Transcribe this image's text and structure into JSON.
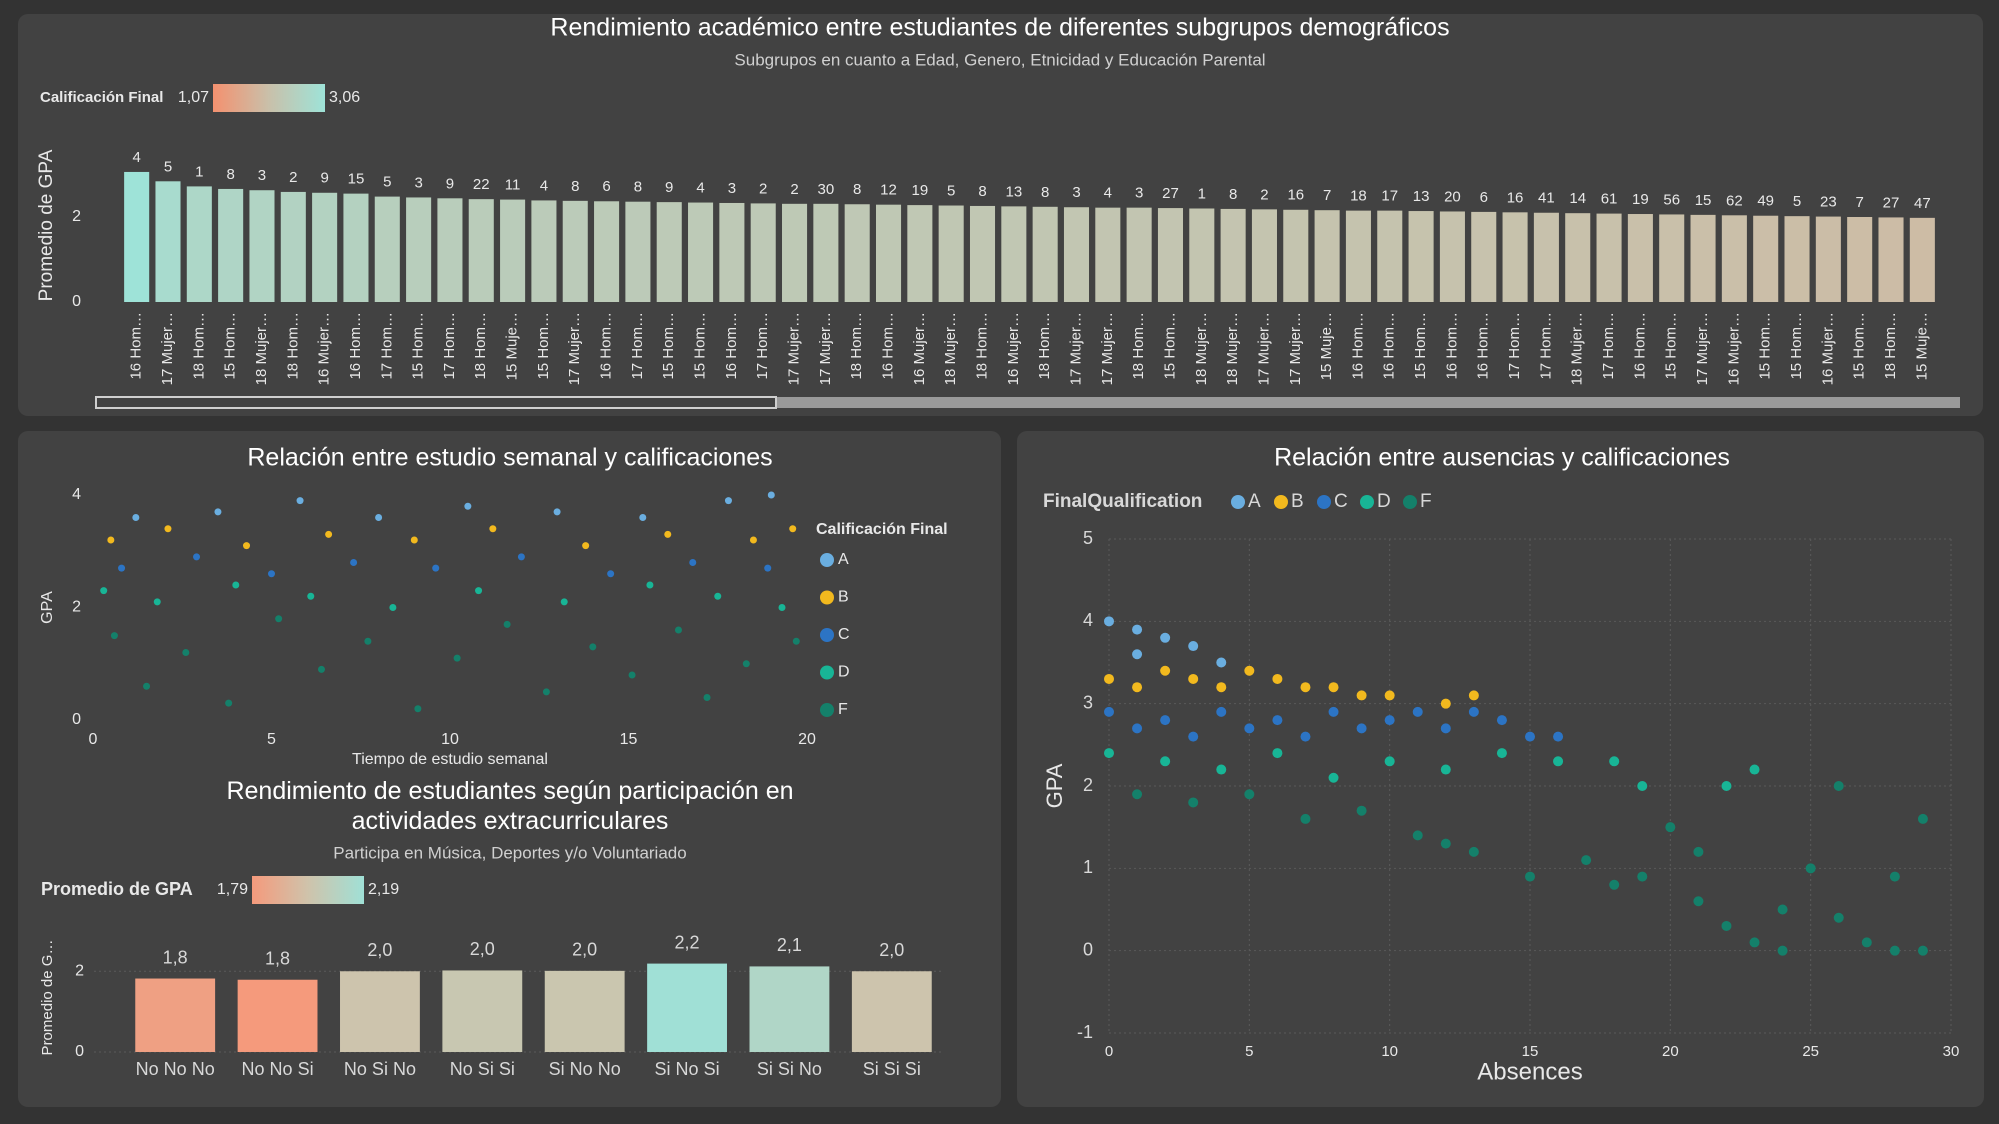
{
  "chart_data": [
    {
      "type": "bar",
      "title": "Rendimiento académico entre estudiantes de diferentes subgrupos demográficos",
      "subtitle": "Subgrupos en cuanto a Edad, Genero, Etnicidad y Educación Parental",
      "ylabel": "Promedio de GPA",
      "legend": {
        "title": "Calificación Final",
        "min": {
          "value": 1.07,
          "label": "1,07"
        },
        "max": {
          "value": 3.06,
          "label": "3,06"
        },
        "colors": [
          "#f4916f",
          "#c9c0aa",
          "#9ee3d8"
        ]
      },
      "categories": [
        "16 Hom…",
        "17 Mujer…",
        "18 Hom…",
        "15 Hom…",
        "18 Mujer…",
        "18 Hom…",
        "16 Mujer…",
        "16 Hom…",
        "17 Hom…",
        "15 Hom…",
        "17 Hom…",
        "18 Hom…",
        "15 Muje…",
        "15 Hom…",
        "17 Mujer…",
        "16 Hom…",
        "17 Hom…",
        "15 Hom…",
        "15 Hom…",
        "16 Hom…",
        "17 Hom…",
        "17 Mujer…",
        "17 Mujer…",
        "18 Hom…",
        "16 Hom…",
        "16 Mujer…",
        "18 Mujer…",
        "18 Hom…",
        "16 Mujer…",
        "18 Hom…",
        "17 Mujer…",
        "17 Mujer…",
        "18 Hom…",
        "15 Hom…",
        "18 Mujer…",
        "18 Mujer…",
        "17 Mujer…",
        "17 Mujer…",
        "15 Muje…",
        "16 Hom…",
        "16 Hom…",
        "15 Hom…",
        "16 Hom…",
        "16 Hom…",
        "17 Hom…",
        "17 Hom…",
        "18 Mujer…",
        "17 Hom…",
        "16 Hom…",
        "15 Hom…",
        "17 Mujer…",
        "16 Mujer…",
        "15 Hom…",
        "15 Hom…",
        "16 Mujer…",
        "15 Hom…",
        "18 Hom…",
        "15 Muje…"
      ],
      "values": [
        3.06,
        2.84,
        2.72,
        2.66,
        2.63,
        2.59,
        2.57,
        2.55,
        2.48,
        2.46,
        2.44,
        2.42,
        2.41,
        2.39,
        2.38,
        2.37,
        2.36,
        2.35,
        2.34,
        2.33,
        2.32,
        2.31,
        2.31,
        2.3,
        2.29,
        2.28,
        2.27,
        2.26,
        2.25,
        2.24,
        2.23,
        2.22,
        2.22,
        2.21,
        2.2,
        2.19,
        2.18,
        2.17,
        2.16,
        2.15,
        2.15,
        2.14,
        2.13,
        2.12,
        2.11,
        2.1,
        2.09,
        2.08,
        2.07,
        2.06,
        2.05,
        2.04,
        2.03,
        2.02,
        2.01,
        2.0,
        1.99,
        1.98
      ],
      "data_labels": [
        4,
        5,
        1,
        8,
        3,
        2,
        9,
        15,
        5,
        3,
        9,
        22,
        11,
        4,
        8,
        6,
        8,
        9,
        4,
        3,
        2,
        2,
        30,
        8,
        12,
        19,
        5,
        8,
        13,
        8,
        3,
        4,
        3,
        27,
        1,
        8,
        2,
        16,
        7,
        18,
        17,
        13,
        20,
        6,
        16,
        41,
        14,
        61,
        19,
        56,
        15,
        62,
        49,
        5,
        23,
        7,
        27,
        47
      ],
      "ylim": [
        0,
        3.6
      ],
      "yticks": [
        0,
        2
      ],
      "grid": false
    },
    {
      "type": "scatter",
      "title": "Relación entre estudio semanal y calificaciones",
      "xlabel": "Tiempo de estudio semanal",
      "ylabel": "GPA",
      "legend_title": "Calificación Final",
      "xlim": [
        0,
        20
      ],
      "xticks": [
        0,
        5,
        10,
        15,
        20
      ],
      "ylim": [
        0,
        4
      ],
      "yticks": [
        0,
        2,
        4
      ],
      "grid": false,
      "series": [
        {
          "name": "A",
          "color": "#6aaee0",
          "x": [
            1.2,
            3.5,
            5.8,
            8.0,
            10.5,
            13.0,
            15.4,
            17.8,
            19.0
          ],
          "values": [
            3.6,
            3.7,
            3.9,
            3.6,
            3.8,
            3.7,
            3.6,
            3.9,
            4.0
          ]
        },
        {
          "name": "B",
          "color": "#f2b91e",
          "x": [
            0.5,
            2.1,
            4.3,
            6.6,
            9.0,
            11.2,
            13.8,
            16.1,
            18.5,
            19.6
          ],
          "values": [
            3.2,
            3.4,
            3.1,
            3.3,
            3.2,
            3.4,
            3.1,
            3.3,
            3.2,
            3.4
          ]
        },
        {
          "name": "C",
          "color": "#2c74c4",
          "x": [
            0.8,
            2.9,
            5.0,
            7.3,
            9.6,
            12.0,
            14.5,
            16.8,
            18.9
          ],
          "values": [
            2.7,
            2.9,
            2.6,
            2.8,
            2.7,
            2.9,
            2.6,
            2.8,
            2.7
          ]
        },
        {
          "name": "D",
          "color": "#18b596",
          "x": [
            0.3,
            1.8,
            4.0,
            6.1,
            8.4,
            10.8,
            13.2,
            15.6,
            17.5,
            19.3
          ],
          "values": [
            2.3,
            2.1,
            2.4,
            2.2,
            2.0,
            2.3,
            2.1,
            2.4,
            2.2,
            2.0
          ]
        },
        {
          "name": "F",
          "color": "#14806a",
          "x": [
            0.6,
            1.5,
            2.6,
            3.8,
            5.2,
            6.4,
            7.7,
            9.1,
            10.2,
            11.6,
            12.7,
            14.0,
            15.1,
            16.4,
            17.2,
            18.3,
            19.7
          ],
          "values": [
            1.5,
            0.6,
            1.2,
            0.3,
            1.8,
            0.9,
            1.4,
            0.2,
            1.1,
            1.7,
            0.5,
            1.3,
            0.8,
            1.6,
            0.4,
            1.0,
            1.4
          ]
        }
      ]
    },
    {
      "type": "bar",
      "title": "Rendimiento de estudiantes según participación en actividades extracurriculares",
      "subtitle": "Participa en Música, Deportes y/o Voluntariado",
      "ylabel": "Promedio de G…",
      "legend": {
        "title": "Promedio de GPA",
        "min": {
          "value": 1.79,
          "label": "1,79"
        },
        "max": {
          "value": 2.19,
          "label": "2,19"
        },
        "colors": [
          "#f59a7c",
          "#cfc3ab",
          "#a0e0d6"
        ]
      },
      "categories": [
        "No No No",
        "No No Si",
        "No Si No",
        "No Si Si",
        "Si No No",
        "Si No Si",
        "Si Si No",
        "Si Si Si"
      ],
      "values": [
        1.82,
        1.79,
        2.0,
        2.02,
        2.01,
        2.19,
        2.12,
        2.0
      ],
      "value_labels": [
        "1,8",
        "1,8",
        "2,0",
        "2,0",
        "2,0",
        "2,2",
        "2,1",
        "2,0"
      ],
      "ylim": [
        0,
        2.7
      ],
      "yticks": [
        0,
        2
      ],
      "grid": true
    },
    {
      "type": "scatter",
      "title": "Relación entre ausencias y calificaciones",
      "xlabel": "Absences",
      "ylabel": "GPA",
      "legend_title": "FinalQualification",
      "xlim": [
        0,
        30
      ],
      "xticks": [
        0,
        5,
        10,
        15,
        20,
        25,
        30
      ],
      "ylim": [
        -1,
        5
      ],
      "yticks": [
        -1,
        0,
        1,
        2,
        3,
        4,
        5
      ],
      "grid": true,
      "series": [
        {
          "name": "A",
          "color": "#6aaee0",
          "x": [
            0,
            1,
            1,
            2,
            3,
            4
          ],
          "values": [
            4.0,
            3.9,
            3.6,
            3.8,
            3.7,
            3.5
          ]
        },
        {
          "name": "B",
          "color": "#f2b91e",
          "x": [
            0,
            1,
            2,
            3,
            4,
            5,
            6,
            7,
            8,
            9,
            10,
            12,
            13
          ],
          "values": [
            3.3,
            3.2,
            3.4,
            3.3,
            3.2,
            3.4,
            3.3,
            3.2,
            3.2,
            3.1,
            3.1,
            3.0,
            3.1
          ]
        },
        {
          "name": "C",
          "color": "#2c74c4",
          "x": [
            0,
            1,
            2,
            3,
            4,
            5,
            6,
            7,
            8,
            9,
            10,
            11,
            12,
            13,
            14,
            15,
            16
          ],
          "values": [
            2.9,
            2.7,
            2.8,
            2.6,
            2.9,
            2.7,
            2.8,
            2.6,
            2.9,
            2.7,
            2.8,
            2.9,
            2.7,
            2.9,
            2.8,
            2.6,
            2.6
          ]
        },
        {
          "name": "D",
          "color": "#18b596",
          "x": [
            0,
            2,
            4,
            6,
            8,
            10,
            12,
            14,
            16,
            18,
            19,
            22,
            23
          ],
          "values": [
            2.4,
            2.3,
            2.2,
            2.4,
            2.1,
            2.3,
            2.2,
            2.4,
            2.3,
            2.3,
            2.0,
            2.0,
            2.2
          ]
        },
        {
          "name": "F",
          "color": "#14806a",
          "x": [
            1,
            3,
            5,
            7,
            9,
            11,
            12,
            13,
            15,
            17,
            18,
            19,
            20,
            21,
            21,
            22,
            23,
            24,
            24,
            25,
            26,
            26,
            27,
            28,
            28,
            29,
            29
          ],
          "values": [
            1.9,
            1.8,
            1.9,
            1.6,
            1.7,
            1.4,
            1.3,
            1.2,
            0.9,
            1.1,
            0.8,
            0.9,
            1.5,
            0.6,
            1.2,
            0.3,
            0.1,
            0.5,
            0.0,
            1.0,
            0.4,
            2.0,
            0.1,
            0.9,
            0.0,
            1.6,
            0.0
          ]
        }
      ]
    }
  ]
}
